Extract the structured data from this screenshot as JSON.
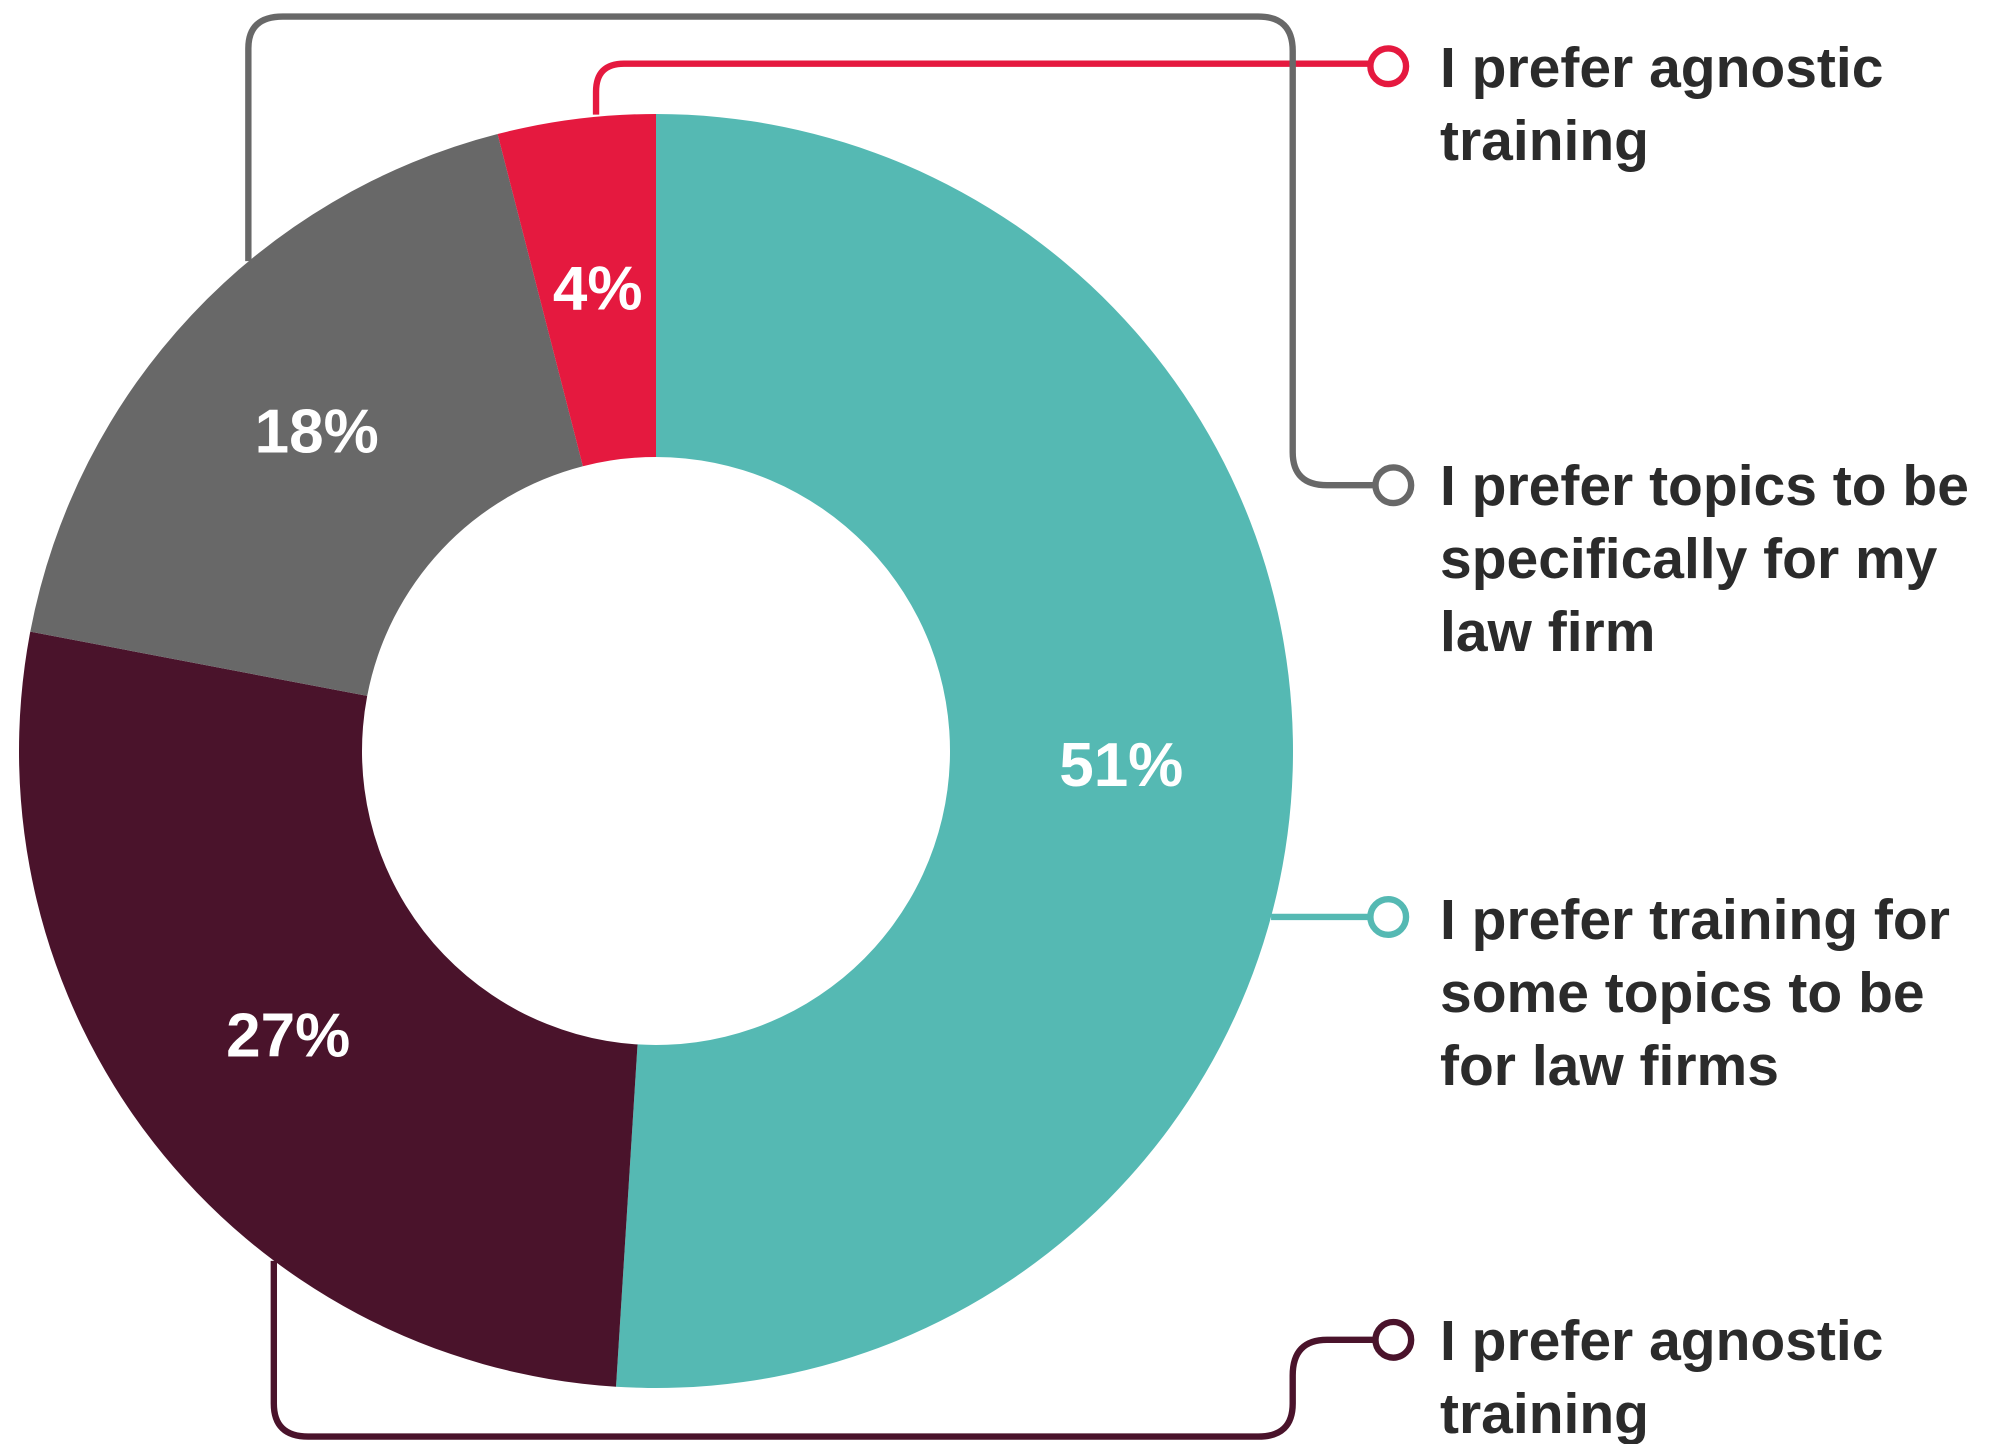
{
  "chart_data": {
    "type": "donut",
    "categories": [
      "I prefer training for some topics to be for law firms",
      "I prefer agnostic training",
      "I prefer topics to be specifically for my law firm",
      "I prefer agnostic training"
    ],
    "values": [
      51,
      27,
      18,
      4
    ],
    "value_labels": [
      "51%",
      "27%",
      "18%",
      "4%"
    ],
    "colors": [
      "#55b9b3",
      "#4a132b",
      "#686868",
      "#e5193f"
    ]
  }
}
